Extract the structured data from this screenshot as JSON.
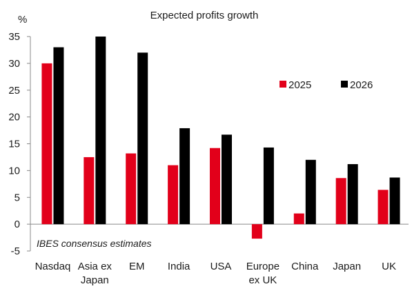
{
  "chart_data": {
    "type": "bar",
    "title": "Expected profits growth",
    "y_unit": "%",
    "note": "IBES consensus estimates",
    "categories": [
      [
        "Nasdaq"
      ],
      [
        "Asia ex",
        "Japan"
      ],
      [
        "EM"
      ],
      [
        "India"
      ],
      [
        "USA"
      ],
      [
        "Europe",
        "ex UK"
      ],
      [
        "China"
      ],
      [
        "Japan"
      ],
      [
        "UK"
      ]
    ],
    "series": [
      {
        "name": "2025",
        "color": "#e2001a",
        "values": [
          30.0,
          12.5,
          13.2,
          11.0,
          14.2,
          -2.7,
          2.0,
          8.6,
          6.4
        ]
      },
      {
        "name": "2026",
        "color": "#000000",
        "values": [
          33.0,
          35.0,
          32.0,
          17.9,
          16.7,
          14.3,
          12.0,
          11.2,
          8.7
        ]
      }
    ],
    "yticks": [
      -5,
      0,
      5,
      10,
      15,
      20,
      25,
      30,
      35
    ],
    "ylim": [
      -5,
      35
    ],
    "grid": false,
    "legend_position": "top-right"
  }
}
